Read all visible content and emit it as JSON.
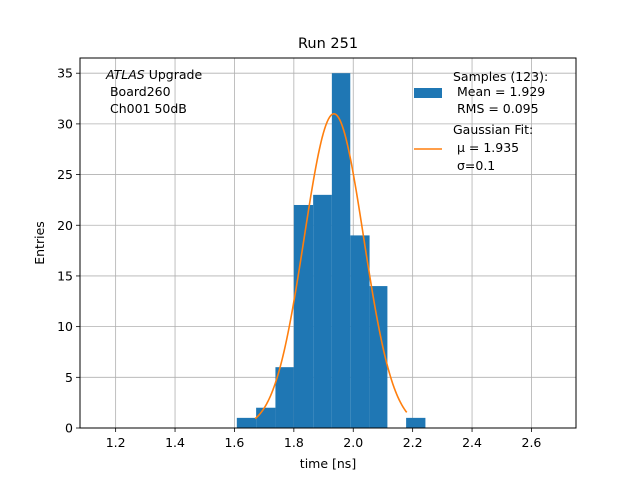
{
  "chart_data": {
    "type": "bar",
    "title": "Run 251",
    "xlabel": "time [ns]",
    "ylabel": "Entries",
    "xlim": [
      1.08,
      2.75
    ],
    "ylim": [
      0,
      36.5
    ],
    "grid": true,
    "x_ticks": [
      "1.2",
      "1.4",
      "1.6",
      "1.8",
      "2.0",
      "2.2",
      "2.4",
      "2.6"
    ],
    "x_tick_values": [
      1.2,
      1.4,
      1.6,
      1.8,
      2.0,
      2.2,
      2.4,
      2.6
    ],
    "y_ticks": [
      "0",
      "5",
      "10",
      "15",
      "20",
      "25",
      "30",
      "35"
    ],
    "y_tick_values": [
      0,
      5,
      10,
      15,
      20,
      25,
      30,
      35
    ],
    "histogram": {
      "color": "#1f77b4",
      "bins": [
        {
          "x0": 1.608,
          "x1": 1.673,
          "count": 1
        },
        {
          "x0": 1.673,
          "x1": 1.738,
          "count": 2
        },
        {
          "x0": 1.738,
          "x1": 1.8,
          "count": 6
        },
        {
          "x0": 1.8,
          "x1": 1.865,
          "count": 22
        },
        {
          "x0": 1.865,
          "x1": 1.928,
          "count": 23
        },
        {
          "x0": 1.928,
          "x1": 1.99,
          "count": 35
        },
        {
          "x0": 1.99,
          "x1": 2.055,
          "count": 19
        },
        {
          "x0": 2.055,
          "x1": 2.115,
          "count": 14
        },
        {
          "x0": 2.115,
          "x1": 2.178,
          "count": 0
        },
        {
          "x0": 2.178,
          "x1": 2.243,
          "count": 1
        }
      ]
    },
    "fit": {
      "color": "#ff7f0e",
      "mu": 1.935,
      "sigma": 0.1,
      "amplitude": 31,
      "x_range": [
        1.67,
        2.18
      ]
    },
    "legend": {
      "placement": "top-right",
      "entries": [
        {
          "lines": [
            "Samples (123):",
            " Mean = 1.929",
            " RMS = 0.095"
          ]
        },
        {
          "lines": [
            "Gaussian Fit:",
            " μ = 1.935",
            " σ=0.1"
          ]
        }
      ]
    },
    "annotation": {
      "placement": "top-left",
      "italic": "ATLAS",
      "rest": " Upgrade",
      "lines": [
        " Board260",
        " Ch001 50dB"
      ]
    }
  }
}
